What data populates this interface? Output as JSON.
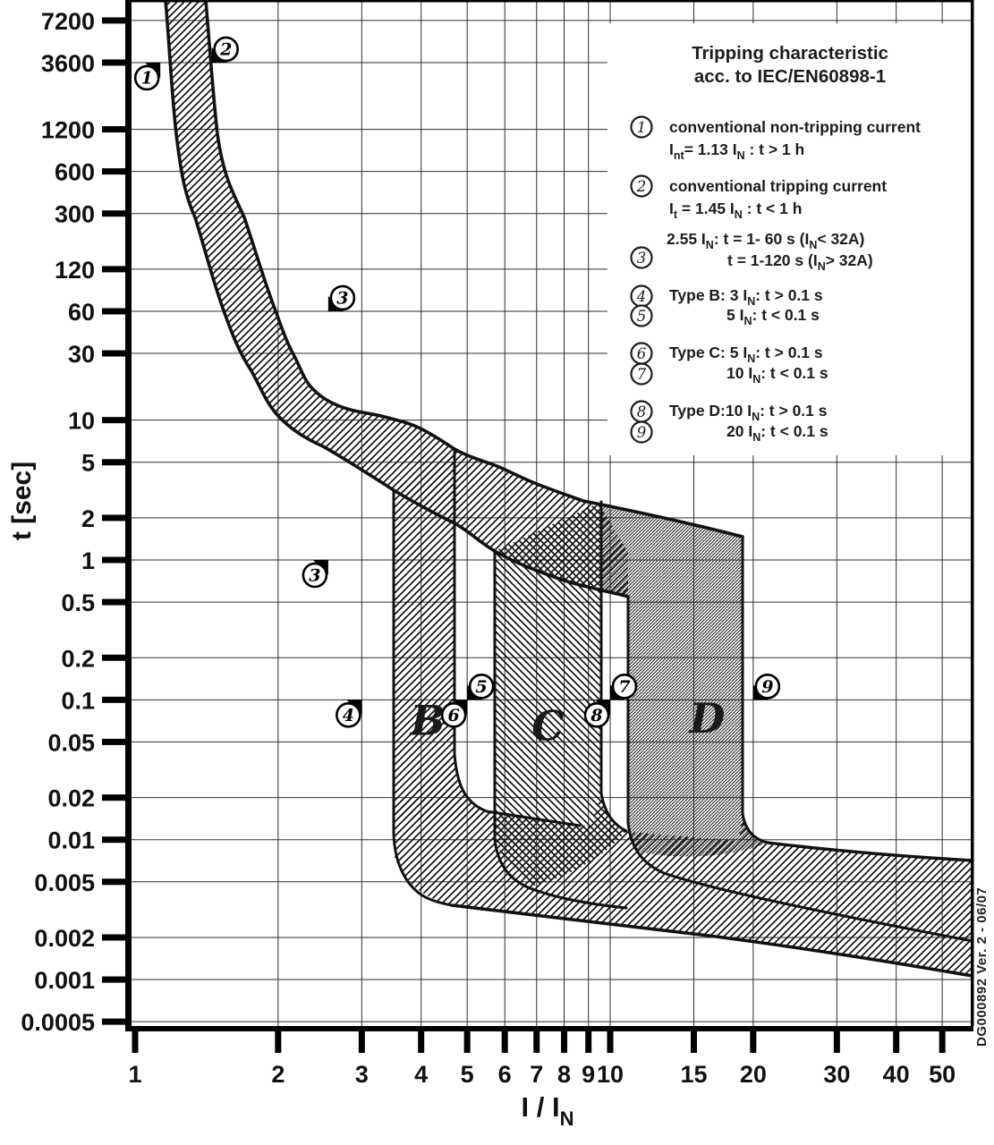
{
  "side_note": "DG000892 Ver. 2 - 06/07",
  "chart_data": {
    "type": "area",
    "title": "Tripping characteristic acc. to IEC/EN60898-1",
    "x_axis": {
      "label_main": "I / I",
      "label_sub": "N",
      "scale": "log",
      "ticks": [
        1,
        2,
        3,
        4,
        5,
        6,
        7,
        8,
        9,
        10,
        15,
        20,
        30,
        40,
        50
      ],
      "range": [
        1,
        57
      ]
    },
    "y_axis": {
      "label": "t [sec]",
      "scale": "log",
      "ticks": [
        "7200",
        "3600",
        "1200",
        "600",
        "300",
        "120",
        "60",
        "30",
        "10",
        "5",
        "2",
        "1",
        "0.5",
        "0.2",
        "0.1",
        "0.05",
        "0.02",
        "0.01",
        "0.005",
        "0.002",
        "0.001",
        "0.0005"
      ],
      "range": [
        0.0005,
        7200
      ]
    },
    "bands": [
      {
        "name": "thermal-tolerance-band",
        "i_non_tripping": 1.13,
        "i_tripping": 1.45,
        "hatch": "diag-light"
      },
      {
        "name": "type-B-magnetic-band",
        "label": "B",
        "i_range": [
          3,
          5
        ],
        "hatch": "diag-light"
      },
      {
        "name": "type-C-magnetic-band",
        "label": "C",
        "i_range": [
          5,
          10
        ],
        "hatch": "diag-reverse"
      },
      {
        "name": "type-D-magnetic-band",
        "label": "D",
        "i_range": [
          10,
          20
        ],
        "hatch": "diag-dense"
      }
    ],
    "region_labels": [
      {
        "text": "B",
        "I": 4.13,
        "t": 0.071
      },
      {
        "text": "C",
        "I": 7.4,
        "t": 0.065
      },
      {
        "text": "D",
        "I": 16.0,
        "t": 0.074
      }
    ],
    "markers": [
      {
        "n": "1",
        "I": 1.13,
        "t": 3600,
        "dir": "ur"
      },
      {
        "n": "2",
        "I": 1.45,
        "t": 3600,
        "dir": "dl"
      },
      {
        "n": "3",
        "I": 2.55,
        "t": 60,
        "dir": "dl"
      },
      {
        "n": "3",
        "I": 2.55,
        "t": 1,
        "dir": "ur"
      },
      {
        "n": "4",
        "I": 3,
        "t": 0.1,
        "dir": "ur"
      },
      {
        "n": "5",
        "I": 5,
        "t": 0.1,
        "dir": "dl"
      },
      {
        "n": "6",
        "I": 5,
        "t": 0.1,
        "dir": "ur"
      },
      {
        "n": "7",
        "I": 10,
        "t": 0.1,
        "dir": "dl"
      },
      {
        "n": "8",
        "I": 10,
        "t": 0.1,
        "dir": "ur"
      },
      {
        "n": "9",
        "I": 20,
        "t": 0.1,
        "dir": "dl"
      }
    ],
    "legend": {
      "title_lines": [
        "Tripping characteristic",
        "acc. to IEC/EN60898-1"
      ],
      "items": [
        {
          "n": "1",
          "lines": [
            [
              [
                "t",
                "conventional non-tripping current"
              ]
            ],
            [
              [
                "t",
                "I"
              ],
              [
                "s",
                "nt"
              ],
              [
                "t",
                "= 1.13 I"
              ],
              [
                "s",
                "N"
              ],
              [
                "t",
                " : t > 1 h"
              ]
            ]
          ]
        },
        {
          "n": "2",
          "lines": [
            [
              [
                "t",
                "conventional tripping current"
              ]
            ],
            [
              [
                "t",
                "I"
              ],
              [
                "s",
                "t"
              ],
              [
                "t",
                " = 1.45 I"
              ],
              [
                "s",
                "N"
              ],
              [
                "t",
                " : t < 1 h"
              ]
            ]
          ]
        },
        {
          "n": "3",
          "lines": [
            [
              [
                "t",
                "2.55 I"
              ],
              [
                "s",
                "N"
              ],
              [
                "t",
                ": t = 1- 60 s (I"
              ],
              [
                "s",
                "N"
              ],
              [
                "t",
                "< 32A)"
              ]
            ],
            [
              [
                "t",
                "t = 1-120 s (I"
              ],
              [
                "s",
                "N"
              ],
              [
                "t",
                "> 32A)"
              ]
            ]
          ]
        },
        {
          "n": "4",
          "lines": [
            [
              [
                "t",
                "Type B: 3 I"
              ],
              [
                "s",
                "N"
              ],
              [
                "t",
                ": t > 0.1 s"
              ]
            ]
          ]
        },
        {
          "n": "5",
          "lines": [
            [
              [
                "t",
                "5 I"
              ],
              [
                "s",
                "N"
              ],
              [
                "t",
                ": t < 0.1 s"
              ]
            ]
          ]
        },
        {
          "n": "6",
          "lines": [
            [
              [
                "t",
                "Type C: 5 I"
              ],
              [
                "s",
                "N"
              ],
              [
                "t",
                ": t > 0.1 s"
              ]
            ]
          ]
        },
        {
          "n": "7",
          "lines": [
            [
              [
                "t",
                "10 I"
              ],
              [
                "s",
                "N"
              ],
              [
                "t",
                ": t < 0.1 s"
              ]
            ]
          ]
        },
        {
          "n": "8",
          "lines": [
            [
              [
                "t",
                "Type D:10 I"
              ],
              [
                "s",
                "N"
              ],
              [
                "t",
                ": t > 0.1 s"
              ]
            ]
          ]
        },
        {
          "n": "9",
          "lines": [
            [
              [
                "t",
                "20 I"
              ],
              [
                "s",
                "N"
              ],
              [
                "t",
                ": t < 0.1 s"
              ]
            ]
          ]
        }
      ]
    }
  }
}
